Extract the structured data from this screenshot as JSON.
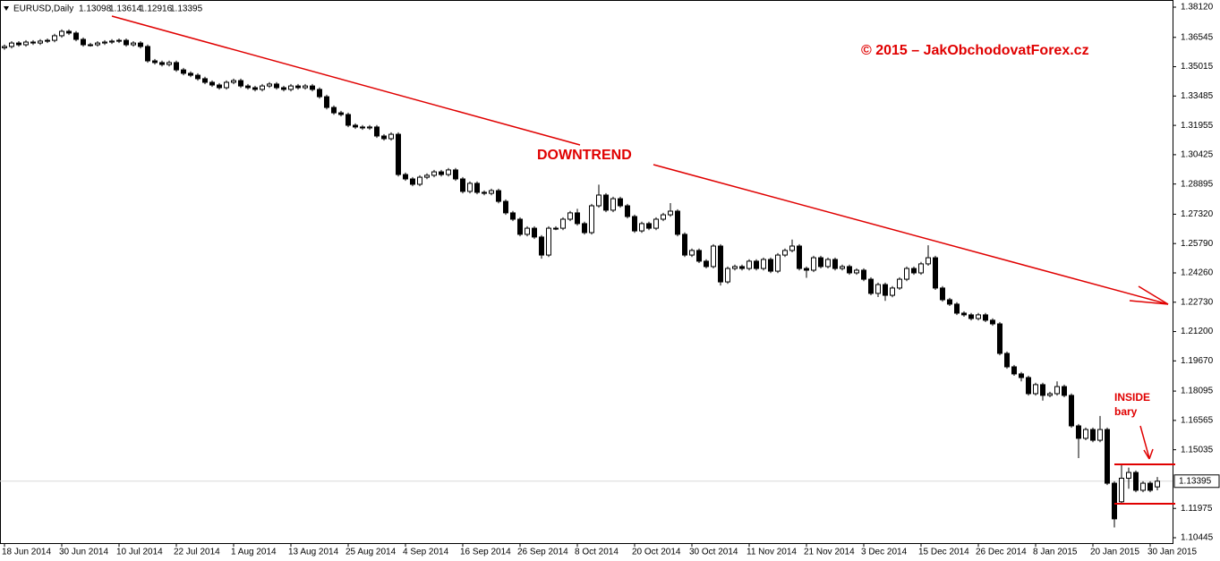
{
  "chart_data": {
    "type": "candlestick",
    "title": "EURUSD,Daily",
    "categories": [
      "18 Jun 2014",
      null,
      null,
      null,
      null,
      null,
      null,
      null,
      "30 Jun 2014",
      null,
      null,
      null,
      null,
      null,
      null,
      null,
      "10 Jul 2014",
      null,
      null,
      null,
      null,
      null,
      null,
      null,
      "22 Jul 2014",
      null,
      null,
      null,
      null,
      null,
      null,
      null,
      "1 Aug 2014",
      null,
      null,
      null,
      null,
      null,
      null,
      null,
      "13 Aug 2014",
      null,
      null,
      null,
      null,
      null,
      null,
      null,
      "25 Aug 2014",
      null,
      null,
      null,
      null,
      null,
      null,
      null,
      "4 Sep 2014",
      null,
      null,
      null,
      null,
      null,
      null,
      null,
      "16 Sep 2014",
      null,
      null,
      null,
      null,
      null,
      null,
      null,
      "26 Sep 2014",
      null,
      null,
      null,
      null,
      null,
      null,
      null,
      "8 Oct 2014",
      null,
      null,
      null,
      null,
      null,
      null,
      null,
      "20 Oct 2014",
      null,
      null,
      null,
      null,
      null,
      null,
      null,
      "30 Oct 2014",
      null,
      null,
      null,
      null,
      null,
      null,
      null,
      "11 Nov 2014",
      null,
      null,
      null,
      null,
      null,
      null,
      null,
      "21 Nov 2014",
      null,
      null,
      null,
      null,
      null,
      null,
      null,
      "3 Dec 2014",
      null,
      null,
      null,
      null,
      null,
      null,
      null,
      "15 Dec 2014",
      null,
      null,
      null,
      null,
      null,
      null,
      null,
      "26 Dec 2014",
      null,
      null,
      null,
      null,
      null,
      null,
      null,
      "8 Jan 2015",
      null,
      null,
      null,
      null,
      null,
      null,
      null,
      "20 Jan 2015",
      null,
      null,
      null,
      null,
      null,
      null,
      null,
      "30 Jan 2015",
      null
    ],
    "open": [
      1.36,
      1.3607,
      1.3625,
      1.3616,
      1.363,
      1.3625,
      1.3635,
      1.3639,
      1.3663,
      1.3686,
      1.3677,
      1.3644,
      1.3616,
      1.3616,
      1.3625,
      1.363,
      1.3635,
      1.3639,
      1.3616,
      1.3625,
      1.3607,
      1.3532,
      1.3523,
      1.3513,
      1.3523,
      1.3485,
      1.3467,
      1.3457,
      1.3439,
      1.342,
      1.3406,
      1.3392,
      1.342,
      1.3429,
      1.3401,
      1.3392,
      1.3383,
      1.3401,
      1.3411,
      1.3392,
      1.3383,
      1.3401,
      1.3392,
      1.3401,
      1.3383,
      1.3345,
      1.3289,
      1.3261,
      1.3252,
      1.3196,
      1.3187,
      1.3182,
      1.3187,
      1.314,
      1.3126,
      1.3149,
      1.2939,
      1.2916,
      1.2888,
      1.2925,
      1.2935,
      1.2953,
      1.2939,
      1.2963,
      1.2916,
      1.2851,
      1.2893,
      1.2846,
      1.2841,
      1.2855,
      1.2799,
      1.2739,
      1.2706,
      1.2627,
      1.2659,
      1.2613,
      1.2519,
      1.2659,
      1.2659,
      1.2706,
      1.2739,
      1.2683,
      1.2636,
      1.2776,
      1.2832,
      1.2753,
      1.2813,
      1.2776,
      1.272,
      1.2645,
      1.2683,
      1.2659,
      1.2706,
      1.2729,
      1.2748,
      1.2627,
      1.2519,
      1.2543,
      1.2487,
      1.2459,
      1.2566,
      1.2379,
      1.2449,
      1.2459,
      1.2449,
      1.2487,
      1.2449,
      1.2496,
      1.2435,
      1.2519,
      1.2543,
      1.2566,
      1.2449,
      1.244,
      1.2505,
      1.2459,
      1.2496,
      1.2449,
      1.2459,
      1.2426,
      1.244,
      1.2393,
      1.2319,
      1.2365,
      1.2309,
      1.2347,
      1.2393,
      1.2449,
      1.2426,
      1.2473,
      1.2505,
      1.2347,
      1.2286,
      1.2263,
      1.2216,
      1.2207,
      1.2188,
      1.2207,
      1.2179,
      1.216,
      1.2006,
      1.1936,
      1.1899,
      1.188,
      1.1796,
      1.1843,
      1.1787,
      1.1796,
      1.1833,
      1.1787,
      1.1628,
      1.1563,
      1.1609,
      1.1553,
      1.1609,
      1.1329,
      1.1232,
      1.1355,
      1.1385,
      1.1292,
      1.1329,
      1.13098
    ],
    "high": [
      1.3617,
      1.3635,
      1.3635,
      1.364,
      1.364,
      1.3645,
      1.3649,
      1.3673,
      1.3696,
      1.3696,
      1.3687,
      1.3654,
      1.3626,
      1.3635,
      1.364,
      1.3645,
      1.3649,
      1.3649,
      1.3635,
      1.3635,
      1.3617,
      1.3542,
      1.3533,
      1.3533,
      1.3533,
      1.3495,
      1.3477,
      1.3467,
      1.3449,
      1.343,
      1.3416,
      1.343,
      1.3439,
      1.3439,
      1.3411,
      1.3402,
      1.3411,
      1.3421,
      1.3421,
      1.3402,
      1.3411,
      1.3411,
      1.3411,
      1.3411,
      1.3393,
      1.3355,
      1.3299,
      1.3271,
      1.3262,
      1.3206,
      1.3197,
      1.3197,
      1.3197,
      1.315,
      1.3159,
      1.3159,
      1.2949,
      1.2926,
      1.2935,
      1.2945,
      1.2963,
      1.2963,
      1.2973,
      1.2973,
      1.2926,
      1.2903,
      1.2903,
      1.2856,
      1.2865,
      1.2865,
      1.2809,
      1.2749,
      1.2716,
      1.2669,
      1.2669,
      1.2623,
      1.2669,
      1.2669,
      1.2716,
      1.2749,
      1.276,
      1.2693,
      1.2786,
      1.2886,
      1.2842,
      1.2823,
      1.2823,
      1.2786,
      1.273,
      1.2693,
      1.2693,
      1.2716,
      1.2739,
      1.279,
      1.2758,
      1.2637,
      1.2553,
      1.2553,
      1.2497,
      1.2576,
      1.2576,
      1.2459,
      1.2469,
      1.2469,
      1.2497,
      1.2497,
      1.2506,
      1.2506,
      1.2529,
      1.2553,
      1.26,
      1.2576,
      1.2459,
      1.2515,
      1.2515,
      1.2506,
      1.2506,
      1.2469,
      1.2469,
      1.245,
      1.245,
      1.2403,
      1.2375,
      1.2375,
      1.2357,
      1.2403,
      1.2459,
      1.2459,
      1.2483,
      1.257,
      1.2515,
      1.2357,
      1.2296,
      1.2273,
      1.2226,
      1.2217,
      1.2217,
      1.2217,
      1.2189,
      1.217,
      1.2016,
      1.1946,
      1.1909,
      1.189,
      1.1853,
      1.1853,
      1.1806,
      1.186,
      1.1843,
      1.1797,
      1.1638,
      1.1619,
      1.1619,
      1.168,
      1.1619,
      1.1339,
      1.1427,
      1.141,
      1.1395,
      1.1339,
      1.1339,
      1.13614
    ],
    "low": [
      1.359,
      1.3597,
      1.3606,
      1.3606,
      1.3615,
      1.3615,
      1.3625,
      1.3629,
      1.3653,
      1.3667,
      1.3634,
      1.3606,
      1.3606,
      1.3606,
      1.3615,
      1.362,
      1.3625,
      1.3606,
      1.3606,
      1.3597,
      1.3522,
      1.3513,
      1.3503,
      1.3503,
      1.3475,
      1.3457,
      1.3447,
      1.3429,
      1.341,
      1.3396,
      1.3382,
      1.3382,
      1.341,
      1.3391,
      1.3382,
      1.3373,
      1.3373,
      1.3391,
      1.3382,
      1.3373,
      1.3373,
      1.3382,
      1.3382,
      1.3373,
      1.3335,
      1.3279,
      1.3251,
      1.3242,
      1.3186,
      1.3177,
      1.3172,
      1.3172,
      1.313,
      1.3116,
      1.3116,
      1.2929,
      1.2906,
      1.2878,
      1.2878,
      1.2915,
      1.2925,
      1.2929,
      1.2929,
      1.2906,
      1.2841,
      1.2841,
      1.2836,
      1.2831,
      1.2831,
      1.2789,
      1.2729,
      1.2696,
      1.2617,
      1.2617,
      1.2603,
      1.25,
      1.2509,
      1.2649,
      1.2649,
      1.2696,
      1.2673,
      1.2626,
      1.2626,
      1.2766,
      1.2743,
      1.2743,
      1.2766,
      1.271,
      1.2635,
      1.2635,
      1.2649,
      1.2649,
      1.2696,
      1.2719,
      1.2617,
      1.2509,
      1.2509,
      1.2477,
      1.2449,
      1.2449,
      1.236,
      1.2369,
      1.2439,
      1.2439,
      1.2439,
      1.2439,
      1.2439,
      1.2425,
      1.2425,
      1.2509,
      1.2533,
      1.2439,
      1.24,
      1.243,
      1.2449,
      1.2449,
      1.2439,
      1.2439,
      1.2416,
      1.2416,
      1.2383,
      1.2309,
      1.23,
      1.228,
      1.2299,
      1.2337,
      1.2383,
      1.2416,
      1.2416,
      1.2463,
      1.2337,
      1.2276,
      1.2253,
      1.2206,
      1.2197,
      1.2178,
      1.2178,
      1.2169,
      1.215,
      1.1996,
      1.1926,
      1.1889,
      1.186,
      1.1786,
      1.1786,
      1.176,
      1.1777,
      1.1786,
      1.1777,
      1.1618,
      1.146,
      1.1553,
      1.1543,
      1.1543,
      1.1319,
      1.1098,
      1.1222,
      1.13,
      1.1282,
      1.1282,
      1.1282,
      1.12916
    ],
    "close": [
      1.3607,
      1.3625,
      1.3616,
      1.363,
      1.3625,
      1.3635,
      1.3639,
      1.3663,
      1.3686,
      1.3677,
      1.3644,
      1.3616,
      1.3616,
      1.3625,
      1.363,
      1.3635,
      1.3639,
      1.3616,
      1.3625,
      1.3607,
      1.3532,
      1.3523,
      1.3513,
      1.3523,
      1.3485,
      1.3467,
      1.3457,
      1.3439,
      1.342,
      1.3406,
      1.3392,
      1.342,
      1.3429,
      1.3401,
      1.3392,
      1.3383,
      1.3401,
      1.3411,
      1.3392,
      1.3383,
      1.3401,
      1.3392,
      1.3401,
      1.3383,
      1.3345,
      1.3289,
      1.3261,
      1.3252,
      1.3196,
      1.3187,
      1.3182,
      1.3187,
      1.314,
      1.3126,
      1.3149,
      1.2939,
      1.2916,
      1.2888,
      1.2925,
      1.2935,
      1.2953,
      1.2939,
      1.2963,
      1.2916,
      1.2851,
      1.2893,
      1.2846,
      1.2841,
      1.2855,
      1.2799,
      1.2739,
      1.2706,
      1.2627,
      1.2659,
      1.2613,
      1.2519,
      1.2659,
      1.2659,
      1.2706,
      1.2739,
      1.2683,
      1.2636,
      1.2776,
      1.2832,
      1.2753,
      1.2813,
      1.2776,
      1.272,
      1.2645,
      1.2683,
      1.2659,
      1.2706,
      1.2729,
      1.2748,
      1.2627,
      1.2519,
      1.2543,
      1.2487,
      1.2459,
      1.2566,
      1.2379,
      1.2449,
      1.2459,
      1.2449,
      1.2487,
      1.2449,
      1.2496,
      1.2435,
      1.2519,
      1.2543,
      1.2566,
      1.2449,
      1.244,
      1.2505,
      1.2459,
      1.2496,
      1.2449,
      1.2459,
      1.2426,
      1.244,
      1.2393,
      1.2319,
      1.2365,
      1.2309,
      1.2347,
      1.2393,
      1.2449,
      1.2426,
      1.2473,
      1.2505,
      1.2347,
      1.2286,
      1.2263,
      1.2216,
      1.2207,
      1.2188,
      1.2207,
      1.2179,
      1.216,
      1.2006,
      1.1936,
      1.1899,
      1.188,
      1.1796,
      1.1843,
      1.1787,
      1.1796,
      1.1833,
      1.1787,
      1.1628,
      1.1563,
      1.1609,
      1.1553,
      1.1609,
      1.1329,
      1.1143,
      1.1355,
      1.1385,
      1.1292,
      1.1329,
      1.1292,
      1.13395
    ],
    "ylim": [
      1.10165,
      1.38494
    ],
    "yticks": [
      {
        "value": 1.3812,
        "label": "1.38120"
      },
      1.36545,
      1.35015,
      1.33485,
      1.31955,
      1.30425,
      1.28895,
      {
        "value": 1.2732,
        "label": "1.27320"
      },
      {
        "value": 1.2579,
        "label": "1.25790"
      },
      {
        "value": 1.2426,
        "label": "1.24260"
      },
      {
        "value": 1.2273,
        "label": "1.22730"
      },
      {
        "value": 1.212,
        "label": "1.21200"
      },
      {
        "value": 1.1967,
        "label": "1.19670"
      },
      1.18095,
      1.16565,
      1.15035,
      1.11975,
      1.10445
    ],
    "up_color": "#ffffff",
    "down_color": "#000000",
    "annotation_color": "#e00000",
    "annotations": {
      "copyright": "© 2015 – JakObchodovatForex.cz",
      "trend": "DOWNTREND",
      "inside": [
        "INSIDE",
        "bary"
      ]
    }
  }
}
